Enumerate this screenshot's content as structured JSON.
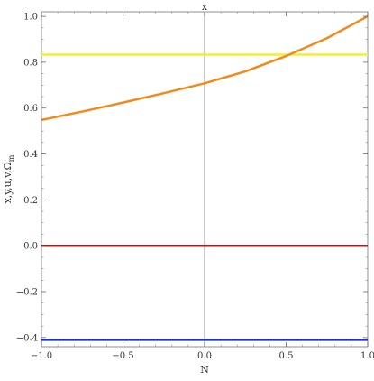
{
  "chart_data": {
    "type": "line",
    "title": "",
    "xlabel": "N",
    "ylabel": "x,y,u,v,Ω",
    "ylabel_subscript": "m",
    "top_axis_label": "x",
    "xlim": [
      -1.0,
      1.0
    ],
    "ylim": [
      -0.44,
      1.02
    ],
    "x_ticks": [
      -1.0,
      -0.5,
      0.0,
      0.5,
      1.0
    ],
    "x_tick_labels": [
      "−1.0",
      "−0.5",
      "0.0",
      "0.5",
      "1.0"
    ],
    "y_ticks": [
      -0.4,
      -0.2,
      0.0,
      0.2,
      0.4,
      0.6,
      0.8,
      1.0
    ],
    "y_tick_labels": [
      "−0.4",
      "−0.2",
      "0.0",
      "0.2",
      "0.4",
      "0.6",
      "0.8",
      "1.0"
    ],
    "grid": false,
    "legend": "none",
    "series": [
      {
        "color": "#f5ee2a",
        "x": [
          -1.0,
          0.0,
          1.0
        ],
        "y": [
          0.833,
          0.833,
          0.833
        ]
      },
      {
        "color": "#b11a1a",
        "x": [
          -1.0,
          0.0,
          1.0
        ],
        "y": [
          0.0,
          0.0,
          0.0
        ]
      },
      {
        "color": "#1c2fc9",
        "x": [
          -1.0,
          0.0,
          1.0
        ],
        "y": [
          -0.41,
          -0.41,
          -0.41
        ]
      },
      {
        "color": "#f08a1c",
        "x": [
          -1.0,
          -0.75,
          -0.5,
          -0.25,
          0.0,
          0.25,
          0.5,
          0.75,
          1.0
        ],
        "y": [
          0.548,
          0.585,
          0.624,
          0.665,
          0.708,
          0.76,
          0.827,
          0.905,
          1.0
        ]
      }
    ]
  }
}
